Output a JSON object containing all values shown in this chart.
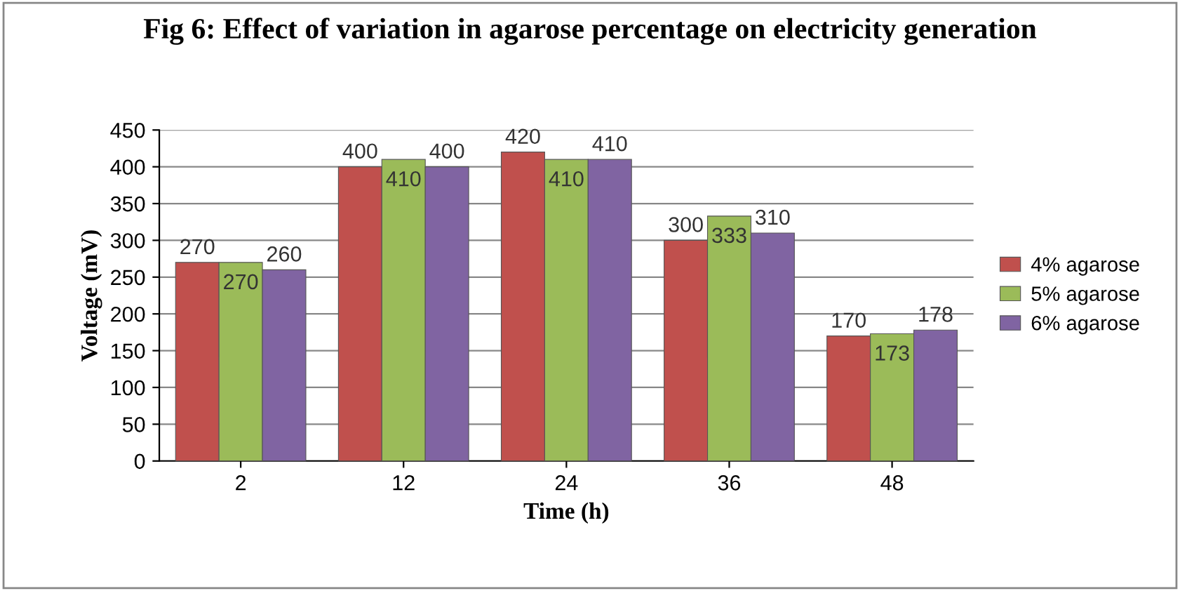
{
  "chart_data": {
    "type": "bar",
    "title": "Fig 6: Effect of variation in agarose percentage on electricity generation",
    "xlabel": "Time (h)",
    "ylabel": "Voltage (mV)",
    "categories": [
      "2",
      "12",
      "24",
      "36",
      "48"
    ],
    "series": [
      {
        "name": "4% agarose",
        "color": "#c0504d",
        "values": [
          270,
          400,
          420,
          300,
          170
        ]
      },
      {
        "name": "5% agarose",
        "color": "#9bbb59",
        "values": [
          270,
          410,
          410,
          333,
          173
        ]
      },
      {
        "name": "6% agarose",
        "color": "#8064a2",
        "values": [
          260,
          400,
          410,
          310,
          178
        ]
      }
    ],
    "ylim": [
      0,
      450
    ],
    "yticks": [
      0,
      50,
      100,
      150,
      200,
      250,
      300,
      350,
      400,
      450
    ],
    "grid": "y",
    "legend": "right",
    "data_labels": true
  }
}
